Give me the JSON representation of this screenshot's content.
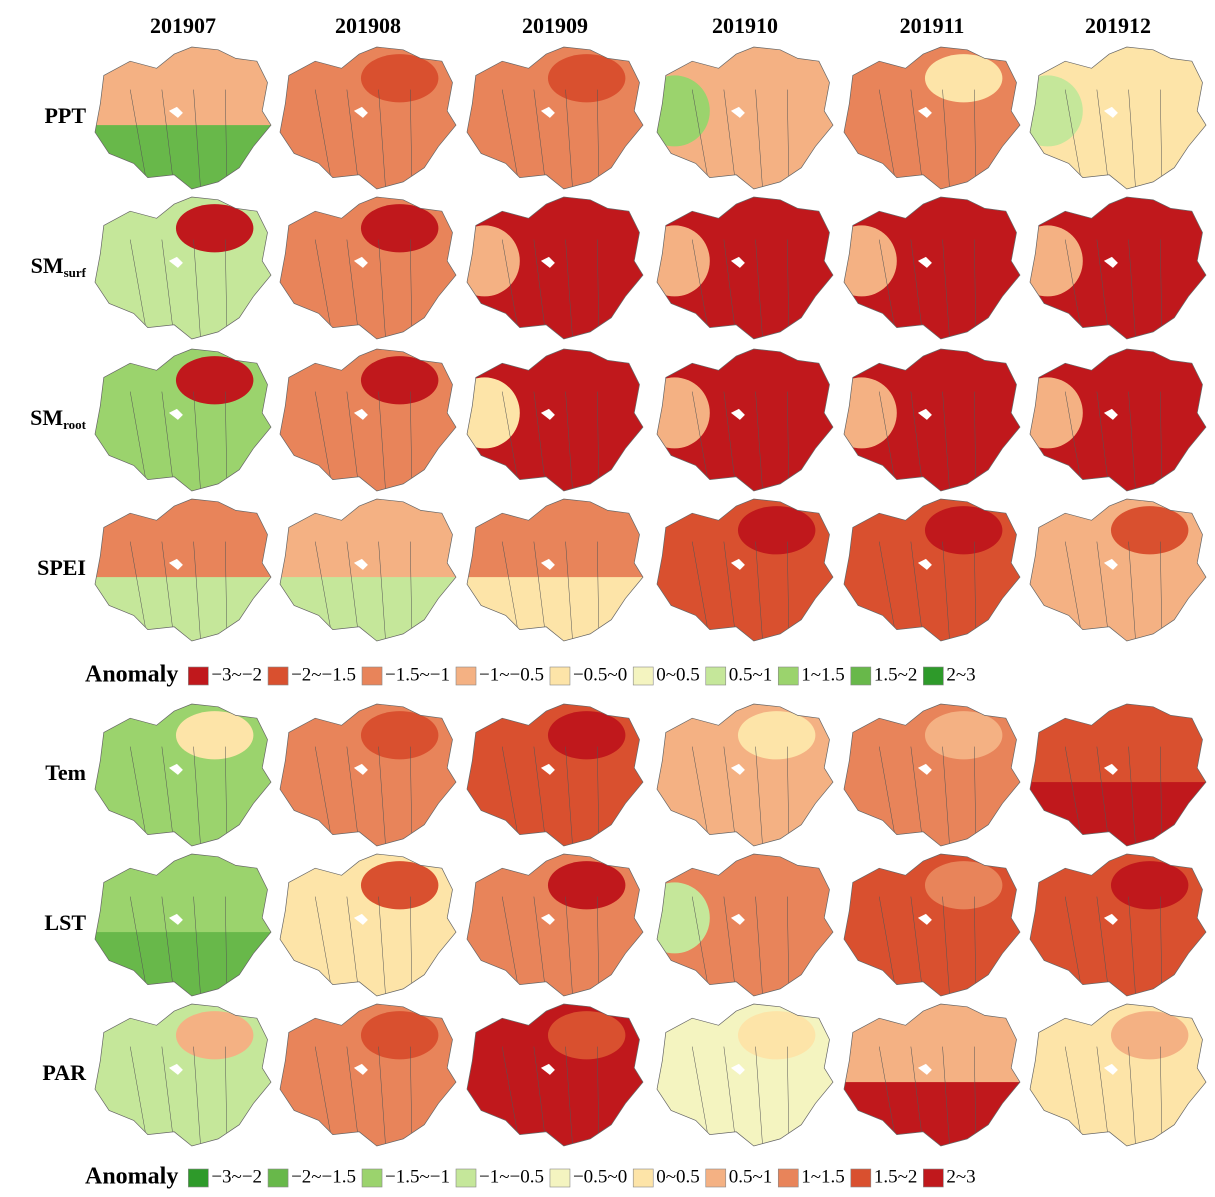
{
  "columns": [
    "201907",
    "201908",
    "201909",
    "201910",
    "201911",
    "201912"
  ],
  "rows": [
    {
      "label": "PPT"
    },
    {
      "label": "SM",
      "sub": "surf"
    },
    {
      "label": "SM",
      "sub": "root"
    },
    {
      "label": "SPEI"
    },
    {
      "label": "Tem"
    },
    {
      "label": "LST"
    },
    {
      "label": "PAR"
    }
  ],
  "legends": [
    {
      "title": "Anomaly",
      "items": [
        {
          "label": "−3~−2",
          "color": "#c0181c"
        },
        {
          "label": "−2~−1.5",
          "color": "#d9502f"
        },
        {
          "label": "−1.5~−1",
          "color": "#e8845a"
        },
        {
          "label": "−1~−0.5",
          "color": "#f4b183"
        },
        {
          "label": "−0.5~0",
          "color": "#fde4a8"
        },
        {
          "label": "0~0.5",
          "color": "#f4f4c0"
        },
        {
          "label": "0.5~1",
          "color": "#c5e79a"
        },
        {
          "label": "1~1.5",
          "color": "#9bd36d"
        },
        {
          "label": "1.5~2",
          "color": "#68b84a"
        },
        {
          "label": "2~3",
          "color": "#2e9a2a"
        }
      ]
    },
    {
      "title": "Anomaly",
      "items": [
        {
          "label": "−3~−2",
          "color": "#2e9a2a"
        },
        {
          "label": "−2~−1.5",
          "color": "#68b84a"
        },
        {
          "label": "−1.5~−1",
          "color": "#9bd36d"
        },
        {
          "label": "−1~−0.5",
          "color": "#c5e79a"
        },
        {
          "label": "−0.5~0",
          "color": "#f4f4c0"
        },
        {
          "label": "0~0.5",
          "color": "#fde4a8"
        },
        {
          "label": "0.5~1",
          "color": "#f4b183"
        },
        {
          "label": "1~1.5",
          "color": "#e8845a"
        },
        {
          "label": "1.5~2",
          "color": "#d9502f"
        },
        {
          "label": "2~3",
          "color": "#c0181c"
        }
      ]
    }
  ]
}
